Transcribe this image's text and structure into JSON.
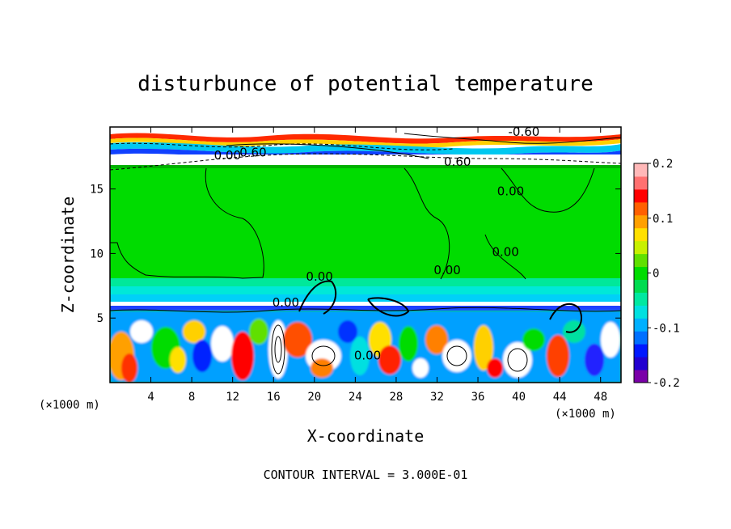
{
  "chart_data": {
    "type": "heatmap",
    "title": "disturbunce of potential temperature",
    "xlabel": "X-coordinate",
    "ylabel": "Z-coordinate",
    "x_unit": "(×1000 m)",
    "x_unit_right": "(×1000 m)",
    "xlim": [
      0,
      50
    ],
    "ylim": [
      0,
      19.8
    ],
    "x_ticks": [
      4,
      8,
      12,
      16,
      20,
      24,
      28,
      32,
      36,
      40,
      44,
      48
    ],
    "y_ticks": [
      5,
      10,
      15
    ],
    "colorbar": {
      "range": [
        -0.2,
        0.2
      ],
      "ticks": [
        "0.2",
        "0.1",
        "0",
        "-0.1",
        "-0.2"
      ],
      "colors": [
        "#7a00a8",
        "#2200d0",
        "#0018ff",
        "#0070ff",
        "#00b0ff",
        "#00e0e0",
        "#00e8a0",
        "#00dc50",
        "#00dc00",
        "#60e000",
        "#c8f000",
        "#ffe000",
        "#ffa000",
        "#ff6000",
        "#ff0000",
        "#ff7070",
        "#ffb8b8"
      ]
    },
    "contour_labels": [
      {
        "text": "0.00",
        "x": 20.5,
        "z": 7.9
      },
      {
        "text": "0.00",
        "x": 17.2,
        "z": 5.9
      },
      {
        "text": "0.00",
        "x": 33.0,
        "z": 8.4
      },
      {
        "text": "0.00",
        "x": 38.7,
        "z": 9.8
      },
      {
        "text": "0.00",
        "x": 39.2,
        "z": 14.5
      },
      {
        "text": "0.00",
        "x": 25.2,
        "z": 1.8
      },
      {
        "text": "0.00",
        "x": 11.5,
        "z": 17.3
      },
      {
        "text": "0.60",
        "x": 14.0,
        "z": 17.5
      },
      {
        "text": "0.60",
        "x": 34.0,
        "z": 16.8
      },
      {
        "text": "-0.60",
        "x": 40.5,
        "z": 19.1
      }
    ],
    "contour_interval_text": "CONTOUR INTERVAL = 3.000E-01"
  }
}
